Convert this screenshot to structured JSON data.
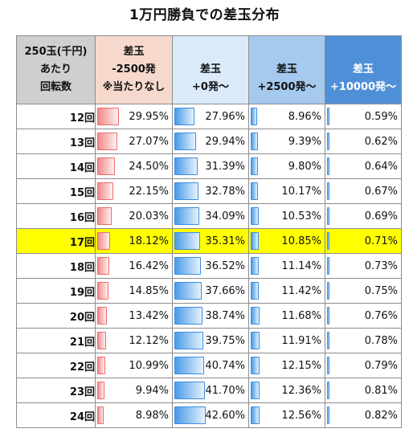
{
  "title": "1万円勝負での差玉分布",
  "chart_data": {
    "type": "table",
    "columns": [
      {
        "lines": [
          "250玉(千円)",
          "あたり",
          "回転数"
        ]
      },
      {
        "lines": [
          "差玉",
          "-2500発",
          "※当たりなし"
        ]
      },
      {
        "lines": [
          "差玉",
          "+0発～"
        ]
      },
      {
        "lines": [
          "差玉",
          "+2500発～"
        ]
      },
      {
        "lines": [
          "差玉",
          "+10000発～"
        ]
      }
    ],
    "highlight_row": "17回",
    "highlight_color": "#ffff00",
    "bar_colors": [
      "#ee6b6b",
      "#3a8ee0",
      "#3a8ee0",
      "#3a8ee0"
    ],
    "bar_max": [
      100,
      100,
      100,
      100
    ],
    "rows": [
      {
        "label": "12回",
        "values": [
          "29.95%",
          "27.96%",
          "8.96%",
          "0.59%"
        ]
      },
      {
        "label": "13回",
        "values": [
          "27.07%",
          "29.94%",
          "9.39%",
          "0.62%"
        ]
      },
      {
        "label": "14回",
        "values": [
          "24.50%",
          "31.39%",
          "9.80%",
          "0.64%"
        ]
      },
      {
        "label": "15回",
        "values": [
          "22.15%",
          "32.78%",
          "10.17%",
          "0.67%"
        ]
      },
      {
        "label": "16回",
        "values": [
          "20.03%",
          "34.09%",
          "10.53%",
          "0.69%"
        ]
      },
      {
        "label": "17回",
        "values": [
          "18.12%",
          "35.31%",
          "10.85%",
          "0.71%"
        ]
      },
      {
        "label": "18回",
        "values": [
          "16.42%",
          "36.52%",
          "11.14%",
          "0.73%"
        ]
      },
      {
        "label": "19回",
        "values": [
          "14.85%",
          "37.66%",
          "11.42%",
          "0.75%"
        ]
      },
      {
        "label": "20回",
        "values": [
          "13.42%",
          "38.74%",
          "11.68%",
          "0.76%"
        ]
      },
      {
        "label": "21回",
        "values": [
          "12.12%",
          "39.75%",
          "11.91%",
          "0.78%"
        ]
      },
      {
        "label": "22回",
        "values": [
          "10.99%",
          "40.74%",
          "12.15%",
          "0.79%"
        ]
      },
      {
        "label": "23回",
        "values": [
          "9.94%",
          "41.70%",
          "12.36%",
          "0.81%"
        ]
      },
      {
        "label": "24回",
        "values": [
          "8.98%",
          "42.60%",
          "12.56%",
          "0.82%"
        ]
      }
    ]
  }
}
